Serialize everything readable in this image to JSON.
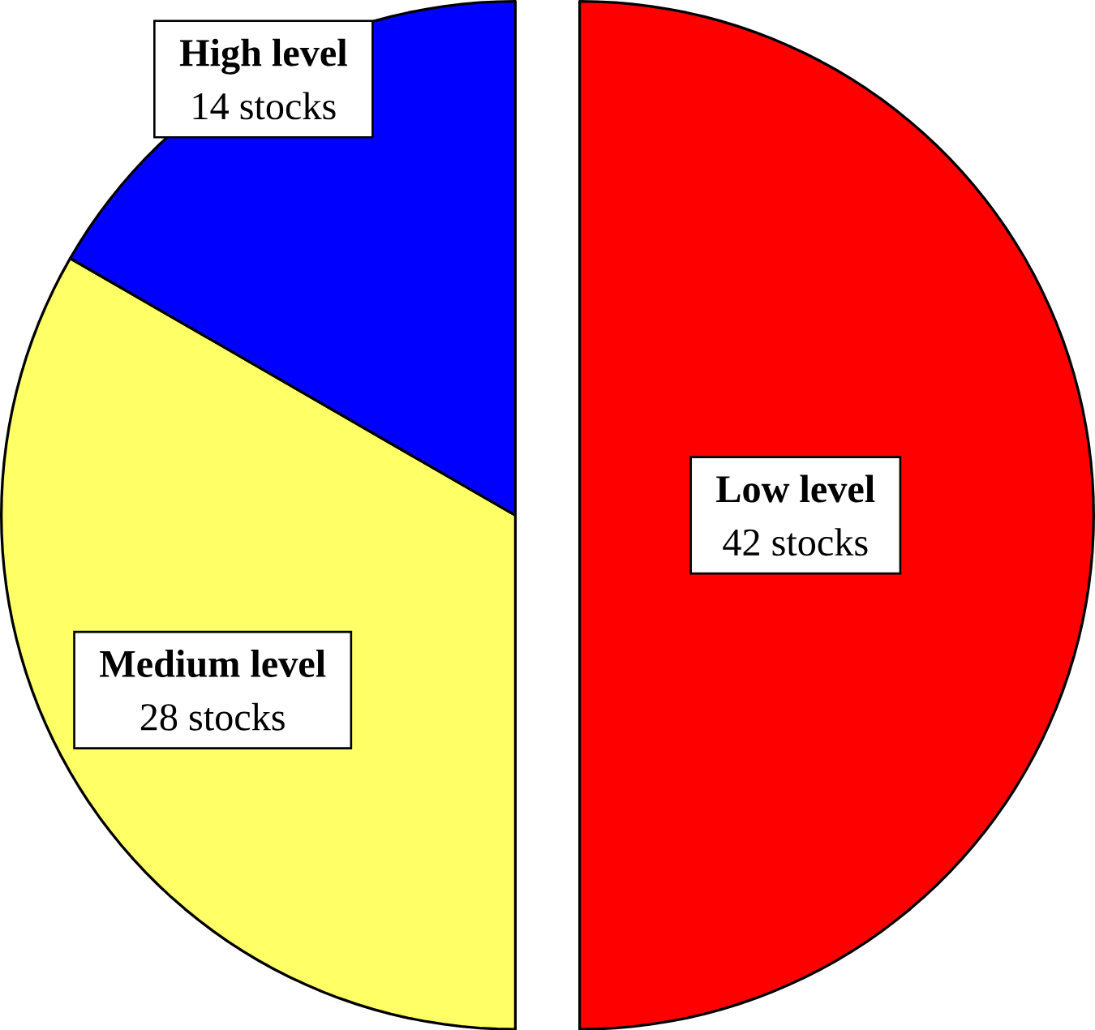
{
  "chart_data": {
    "type": "pie",
    "categories": [
      "Low level",
      "Medium level",
      "High level"
    ],
    "values": [
      42,
      28,
      14
    ],
    "value_labels": [
      "42 stocks",
      "28 stocks",
      "14 stocks"
    ],
    "colors": [
      "#ff0000",
      "#ffff66",
      "#0000ff"
    ]
  }
}
